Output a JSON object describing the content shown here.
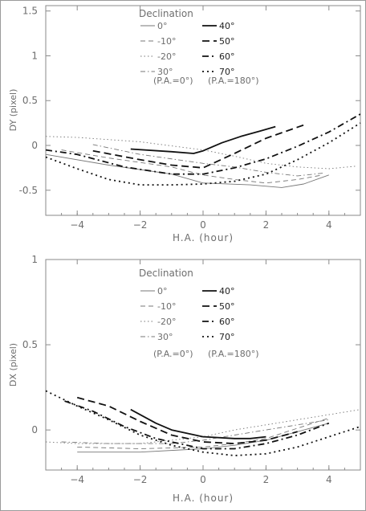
{
  "chart_data": [
    {
      "type": "line",
      "ylabel": "DY  (pixel)",
      "xlabel": "H.A.  (hour)",
      "xlim": [
        -5.0,
        5.0
      ],
      "ylim": [
        -0.78,
        1.56
      ],
      "xticks": [
        -4,
        -2,
        0,
        2,
        4
      ],
      "yticks": [
        -0.5,
        0,
        0.5,
        1,
        1.5
      ],
      "ytick_labels": [
        "-0.5",
        "0",
        "0.5",
        "1",
        "1.5"
      ],
      "legend": {
        "title": "Declination",
        "left_labels": [
          "0°",
          "-10°",
          "-20°",
          "30°"
        ],
        "right_labels": [
          "40°",
          "50°",
          "60°",
          "70°"
        ],
        "left_note": "(P.A.=0°)",
        "right_note": "(P.A.=180°)"
      },
      "series": [
        {
          "name": "0°",
          "style": "solid",
          "weight": "thin",
          "x": [
            -5.0,
            -3.0,
            -1.0,
            0.0,
            1.5,
            2.5,
            3.2,
            4.0
          ],
          "y": [
            -0.1,
            -0.22,
            -0.32,
            -0.42,
            -0.44,
            -0.47,
            -0.43,
            -0.33
          ]
        },
        {
          "name": "-10°",
          "style": "dashed",
          "weight": "thin",
          "x": [
            -4.5,
            -3.0,
            -1.0,
            0.0,
            1.0,
            2.0,
            3.0,
            3.8
          ],
          "y": [
            -0.05,
            -0.14,
            -0.24,
            -0.33,
            -0.38,
            -0.42,
            -0.38,
            -0.33
          ]
        },
        {
          "name": "-20°",
          "style": "dotted",
          "weight": "thin",
          "x": [
            -5.0,
            -4.0,
            -2.0,
            0.0,
            1.0,
            2.0,
            3.0,
            4.0,
            4.9
          ],
          "y": [
            0.1,
            0.09,
            0.04,
            -0.05,
            -0.12,
            -0.2,
            -0.24,
            -0.26,
            -0.23
          ]
        },
        {
          "name": "30°",
          "style": "dashdot",
          "weight": "thin",
          "x": [
            -3.5,
            -2.0,
            0.0,
            1.0,
            2.0,
            3.0,
            3.8
          ],
          "y": [
            0.01,
            -0.1,
            -0.2,
            -0.24,
            -0.3,
            -0.34,
            -0.31
          ]
        },
        {
          "name": "40°",
          "style": "solid",
          "weight": "thick",
          "x": [
            -2.3,
            -1.0,
            -0.3,
            0.0,
            0.6,
            1.2,
            1.8,
            2.3
          ],
          "y": [
            -0.04,
            -0.07,
            -0.09,
            -0.06,
            0.03,
            0.1,
            0.16,
            0.21
          ]
        },
        {
          "name": "50°",
          "style": "dashed",
          "weight": "thick",
          "x": [
            -3.5,
            -2.0,
            -1.0,
            0.0,
            1.0,
            2.0,
            3.3
          ],
          "y": [
            -0.06,
            -0.16,
            -0.22,
            -0.25,
            -0.09,
            0.08,
            0.24
          ]
        },
        {
          "name": "60°",
          "style": "dashdot",
          "weight": "thick",
          "x": [
            -5.0,
            -4.0,
            -2.5,
            -1.0,
            0.0,
            1.0,
            2.0,
            3.0,
            4.0,
            5.0
          ],
          "y": [
            -0.05,
            -0.1,
            -0.24,
            -0.32,
            -0.32,
            -0.25,
            -0.15,
            -0.01,
            0.15,
            0.35
          ]
        },
        {
          "name": "70°",
          "style": "dotted",
          "weight": "thick",
          "x": [
            -5.0,
            -4.0,
            -3.0,
            -2.0,
            -1.0,
            0.0,
            1.0,
            2.0,
            3.0,
            4.0,
            5.0
          ],
          "y": [
            -0.13,
            -0.26,
            -0.38,
            -0.44,
            -0.44,
            -0.43,
            -0.4,
            -0.32,
            -0.16,
            0.03,
            0.25
          ]
        }
      ]
    },
    {
      "type": "line",
      "ylabel": "DX  (pixel)",
      "xlabel": "H.A.  (hour)",
      "xlim": [
        -5.0,
        5.0
      ],
      "ylim": [
        -0.235,
        1.0
      ],
      "xticks": [
        -4,
        -2,
        0,
        2,
        4
      ],
      "yticks": [
        0,
        0.5,
        1
      ],
      "ytick_labels": [
        "0",
        "0.5",
        "1"
      ],
      "legend": {
        "title": "Declination",
        "left_labels": [
          "0°",
          "-10°",
          "-20°",
          "30°"
        ],
        "right_labels": [
          "40°",
          "50°",
          "60°",
          "70°"
        ],
        "left_note": "(P.A.=0°)",
        "right_note": "(P.A.=180°)"
      },
      "series": [
        {
          "name": "0°",
          "style": "solid",
          "weight": "thin",
          "x": [
            -4.0,
            -2.0,
            0.0,
            1.0,
            2.0,
            3.0,
            4.0
          ],
          "y": [
            -0.13,
            -0.13,
            -0.11,
            -0.09,
            -0.06,
            -0.01,
            0.04
          ]
        },
        {
          "name": "-10°",
          "style": "dashed",
          "weight": "thin",
          "x": [
            -4.0,
            -2.0,
            0.0,
            1.0,
            2.0,
            3.0,
            4.0
          ],
          "y": [
            -0.1,
            -0.11,
            -0.1,
            -0.08,
            -0.05,
            0.01,
            0.07
          ]
        },
        {
          "name": "-20°",
          "style": "dotted",
          "weight": "thin",
          "x": [
            -5.0,
            -4.0,
            -2.0,
            0.0,
            1.0,
            2.0,
            3.0,
            4.0,
            5.0
          ],
          "y": [
            -0.07,
            -0.08,
            -0.08,
            -0.04,
            0.0,
            0.03,
            0.06,
            0.09,
            0.12
          ]
        },
        {
          "name": "30°",
          "style": "dashdot",
          "weight": "thin",
          "x": [
            -4.5,
            -3.0,
            -1.0,
            0.0,
            1.0,
            2.0,
            3.0,
            4.0
          ],
          "y": [
            -0.07,
            -0.08,
            -0.08,
            -0.06,
            -0.03,
            0.0,
            0.03,
            0.06
          ]
        },
        {
          "name": "40°",
          "style": "solid",
          "weight": "thick",
          "x": [
            -2.3,
            -1.5,
            -1.0,
            0.0,
            1.0,
            1.5,
            2.0
          ],
          "y": [
            0.12,
            0.04,
            0.0,
            -0.04,
            -0.05,
            -0.05,
            -0.04
          ]
        },
        {
          "name": "50°",
          "style": "dashed",
          "weight": "thick",
          "x": [
            -4.0,
            -3.0,
            -2.0,
            -1.0,
            0.0,
            1.0,
            2.0,
            3.0
          ],
          "y": [
            0.19,
            0.14,
            0.05,
            -0.03,
            -0.07,
            -0.08,
            -0.06,
            -0.01
          ]
        },
        {
          "name": "60°",
          "style": "dashdot",
          "weight": "thick",
          "x": [
            -4.4,
            -3.5,
            -2.5,
            -1.5,
            0.0,
            1.0,
            2.0,
            3.0,
            4.0
          ],
          "y": [
            0.17,
            0.11,
            0.02,
            -0.05,
            -0.11,
            -0.11,
            -0.08,
            -0.03,
            0.04
          ]
        },
        {
          "name": "70°",
          "style": "dotted",
          "weight": "thick",
          "x": [
            -5.0,
            -4.0,
            -3.0,
            -2.0,
            -1.0,
            0.0,
            1.0,
            2.0,
            3.0,
            4.0,
            5.0
          ],
          "y": [
            0.23,
            0.14,
            0.06,
            -0.03,
            -0.09,
            -0.13,
            -0.15,
            -0.14,
            -0.1,
            -0.04,
            0.02
          ]
        }
      ]
    }
  ]
}
